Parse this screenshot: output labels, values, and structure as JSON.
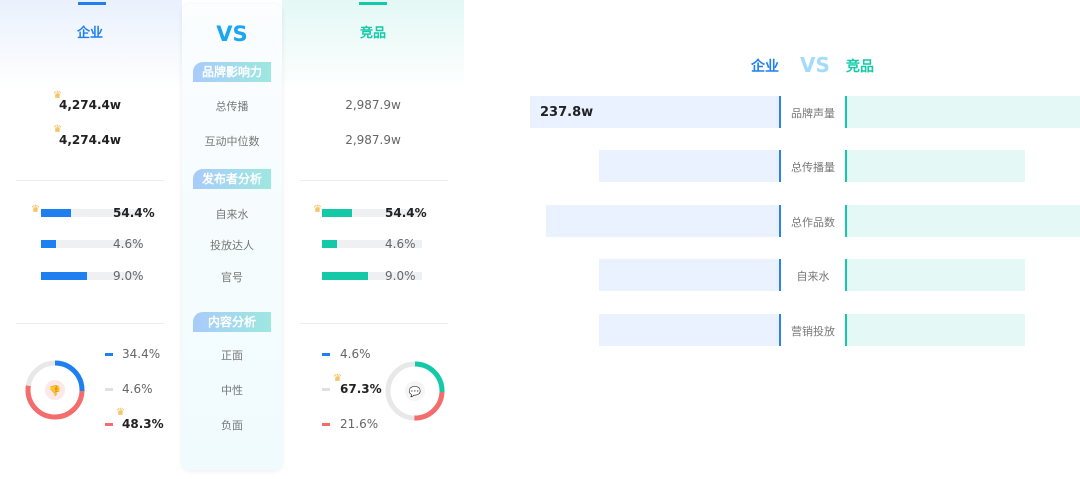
{
  "colors": {
    "enterprise": "#1e7ff0",
    "competitor": "#13c9a7",
    "negative": "#f56c6c",
    "neutral": "#e6e6e6",
    "crown": "#f2b640"
  },
  "left_panel": {
    "enterprise_title": "企业",
    "vs": "VS",
    "competitor_title": "竞品",
    "sections": [
      "品牌影响力",
      "发布者分析",
      "内容分析"
    ],
    "brand": {
      "rows": [
        {
          "label": "总传播",
          "enterprise": "4,274.4w",
          "competitor": "2,987.9w",
          "winner": "enterprise"
        },
        {
          "label": "互动中位数",
          "enterprise": "4,274.4w",
          "competitor": "2,987.9w",
          "winner": "enterprise"
        }
      ]
    },
    "publisher": {
      "rows": [
        {
          "label": "自来水",
          "enterprise": "54.4%",
          "competitor": "54.4%",
          "enterprise_value": 54.4,
          "competitor_value": 54.4
        },
        {
          "label": "投放达人",
          "enterprise": "4.6%",
          "competitor": "4.6%",
          "enterprise_value": 4.6,
          "competitor_value": 4.6
        },
        {
          "label": "官号",
          "enterprise": "9.0%",
          "competitor": "9.0%",
          "enterprise_value": 9.0,
          "competitor_value": 9.0
        }
      ]
    },
    "content": {
      "rows": [
        {
          "label": "正面",
          "enterprise": "34.4%",
          "competitor": "4.6%"
        },
        {
          "label": "中性",
          "enterprise": "4.6%",
          "competitor": "67.3%"
        },
        {
          "label": "负面",
          "enterprise": "48.3%",
          "competitor": "21.6%"
        }
      ],
      "enterprise_icon": "thumbs-down-icon",
      "competitor_icon": "chat-bubble-icon"
    }
  },
  "right_panel": {
    "enterprise_title": "企业",
    "vs": "VS",
    "competitor_title": "竞品",
    "rows": [
      {
        "label": "品牌声量",
        "enterprise_value": "237.8w"
      },
      {
        "label": "总传播量"
      },
      {
        "label": "总作品数"
      },
      {
        "label": "自来水"
      },
      {
        "label": "营销投放"
      }
    ]
  }
}
